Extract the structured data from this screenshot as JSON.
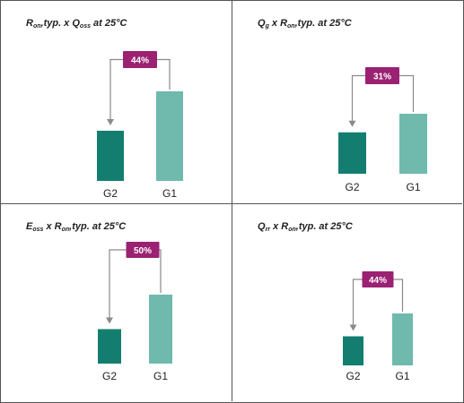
{
  "colors": {
    "g2": "#137e6f",
    "g1": "#6fb9ad",
    "badge": "#9b2173",
    "arrow": "#8a8a8a"
  },
  "chart_data": [
    {
      "type": "bar",
      "title_parts": [
        {
          "text": "R",
          "sub": "on"
        },
        {
          "text": ",typ. x Q",
          "sub": "oss"
        },
        {
          "text": " at 25°C",
          "sub": ""
        }
      ],
      "categories": [
        "G2",
        "G1"
      ],
      "values": [
        56,
        100
      ],
      "reduction_label": "44%"
    },
    {
      "type": "bar",
      "title_parts": [
        {
          "text": "Q",
          "sub": "g"
        },
        {
          "text": "  x R",
          "sub": "on"
        },
        {
          "text": ",typ. at 25°C",
          "sub": ""
        }
      ],
      "categories": [
        "G2",
        "G1"
      ],
      "values": [
        69,
        100
      ],
      "reduction_label": "31%"
    },
    {
      "type": "bar",
      "title_parts": [
        {
          "text": "E",
          "sub": "oss"
        },
        {
          "text": " x R",
          "sub": "on"
        },
        {
          "text": ",typ. at 25°C",
          "sub": ""
        }
      ],
      "categories": [
        "G2",
        "G1"
      ],
      "values": [
        50,
        100
      ],
      "reduction_label": "50%"
    },
    {
      "type": "bar",
      "title_parts": [
        {
          "text": "Q",
          "sub": "rr"
        },
        {
          "text": " x R",
          "sub": "on"
        },
        {
          "text": ",typ. at 25°C",
          "sub": ""
        }
      ],
      "categories": [
        "G2",
        "G1"
      ],
      "values": [
        56,
        100
      ],
      "reduction_label": "44%"
    }
  ]
}
